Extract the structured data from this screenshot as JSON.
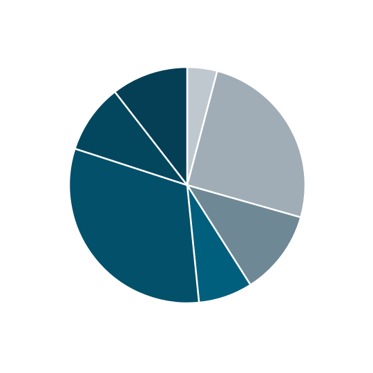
{
  "chart_data": {
    "type": "pie",
    "values": [
      4.1,
      25.3,
      11.6,
      7.4,
      31.6,
      9.5,
      10.5
    ],
    "colors": [
      "#bfc8cf",
      "#a0adb6",
      "#6f8895",
      "#005f7d",
      "#02506a",
      "#03475f",
      "#053f56"
    ]
  }
}
